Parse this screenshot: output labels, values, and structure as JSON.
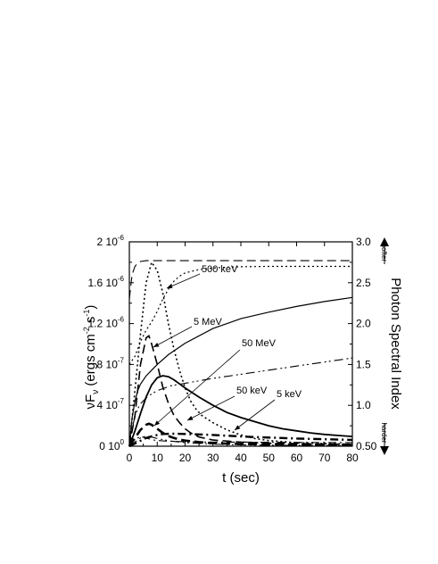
{
  "chart_data": {
    "type": "line",
    "xlabel": "t  (sec)",
    "ylabel_left": "νF_ν (ergs cm^-2 s^-1)",
    "ylabel_right": "Photon  Spectral  Index",
    "right_axis_direction_top": "softer",
    "right_axis_direction_bottom": "harder",
    "xlim": [
      0,
      80
    ],
    "ylim_left": [
      0,
      2e-06
    ],
    "ylim_right": [
      0.5,
      3.0
    ],
    "x_ticks": [
      0,
      10,
      20,
      30,
      40,
      50,
      60,
      70,
      80
    ],
    "x_tick_labels": [
      "0",
      "10",
      "20",
      "30",
      "40",
      "50",
      "60",
      "70",
      "80"
    ],
    "y_left_ticks": [
      {
        "base": "0",
        "exp": "0",
        "value": 0
      },
      {
        "base": "4",
        "exp": "-7",
        "value": 4e-07
      },
      {
        "base": "8",
        "exp": "-7",
        "value": 8e-07
      },
      {
        "base": "1.2",
        "exp": "-6",
        "value": 1.2e-06
      },
      {
        "base": "1.6",
        "exp": "-6",
        "value": 1.6e-06
      },
      {
        "base": "2",
        "exp": "-6",
        "value": 2e-06
      }
    ],
    "y_right_ticks": [
      {
        "label": "0.50",
        "value": 0.5
      },
      {
        "label": "1.0",
        "value": 1.0
      },
      {
        "label": "1.5",
        "value": 1.5
      },
      {
        "label": "2.0",
        "value": 2.0
      },
      {
        "label": "2.5",
        "value": 2.5
      },
      {
        "label": "3.0",
        "value": 3.0
      }
    ],
    "annotations": [
      {
        "text": "500 keV"
      },
      {
        "text": "5 MeV"
      },
      {
        "text": "50 MeV"
      },
      {
        "text": "50 keV"
      },
      {
        "text": "5 keV"
      }
    ],
    "series": [
      {
        "axis": "left",
        "style": "dotted",
        "width": 1.6,
        "x": [
          0,
          2,
          4,
          6,
          8,
          10,
          12,
          14,
          16,
          18,
          20,
          22,
          24,
          26,
          30,
          35,
          40,
          45,
          50,
          60,
          70,
          80
        ],
        "y": [
          0,
          5.5e-07,
          1.1e-06,
          1.6e-06,
          1.8e-06,
          1.72e-06,
          1.5e-06,
          1.2e-06,
          9.5e-07,
          7.4e-07,
          5.7e-07,
          4.4e-07,
          3.6e-07,
          3e-07,
          2.3e-07,
          1.6e-07,
          1.1e-07,
          7.5e-08,
          5.5e-08,
          3.5e-08,
          2.5e-08,
          2e-08
        ]
      },
      {
        "axis": "left",
        "style": "dashed",
        "width": 1.6,
        "x": [
          0,
          2,
          4,
          6,
          7,
          8,
          10,
          12,
          14,
          16,
          18,
          20,
          22,
          25,
          30,
          40,
          50,
          60,
          70,
          80
        ],
        "y": [
          0,
          3e-07,
          8e-07,
          1.06e-06,
          1.08e-06,
          1e-06,
          8e-07,
          5.8e-07,
          4.2e-07,
          3e-07,
          2.3e-07,
          1.7e-07,
          1.3e-07,
          9e-08,
          6e-08,
          4e-08,
          3e-08,
          2.5e-08,
          2e-08,
          1.8e-08
        ]
      },
      {
        "axis": "left",
        "style": "solid",
        "width": 1.8,
        "x": [
          0,
          2,
          4,
          6,
          8,
          10,
          12,
          14,
          16,
          18,
          20,
          25,
          30,
          35,
          40,
          45,
          50,
          55,
          60,
          65,
          70,
          75,
          80
        ],
        "y": [
          0,
          1.5e-07,
          3.2e-07,
          4.8e-07,
          6e-07,
          6.7e-07,
          6.9e-07,
          6.8e-07,
          6.5e-07,
          6.1e-07,
          5.7e-07,
          4.8e-07,
          4e-07,
          3.3e-07,
          2.8e-07,
          2.4e-07,
          2e-07,
          1.7e-07,
          1.5e-07,
          1.3e-07,
          1.15e-07,
          1.05e-07,
          9.5e-08
        ]
      },
      {
        "axis": "left",
        "style": "dashed",
        "width": 2.6,
        "x": [
          0,
          2,
          4,
          6,
          7,
          8,
          10,
          12,
          14,
          16,
          18,
          20,
          25,
          30,
          40,
          50,
          60,
          70,
          80
        ],
        "y": [
          0,
          8e-08,
          1.6e-07,
          2.1e-07,
          2.2e-07,
          2.1e-07,
          1.7e-07,
          1.3e-07,
          1e-07,
          8e-08,
          6.5e-08,
          5.5e-08,
          4e-08,
          3e-08,
          2.2e-08,
          1.8e-08,
          1.5e-08,
          1.3e-08,
          1.2e-08
        ]
      },
      {
        "axis": "left",
        "style": "dashdot",
        "width": 2.4,
        "x": [
          0,
          3,
          6,
          9,
          12,
          16,
          20,
          25,
          30,
          40,
          50,
          60,
          70,
          80
        ],
        "y": [
          0,
          4e-08,
          8e-08,
          1.05e-07,
          1.2e-07,
          1.22e-07,
          1.2e-07,
          1.15e-07,
          1.1e-07,
          9.5e-08,
          8.5e-08,
          7.5e-08,
          6.8e-08,
          6.2e-08
        ]
      },
      {
        "axis": "left",
        "style": "dashdotdot",
        "width": 1.1,
        "x": [
          0,
          2,
          4,
          6,
          8,
          10,
          15,
          20,
          30,
          40,
          50,
          60,
          70,
          80
        ],
        "y": [
          0,
          4e-08,
          8e-08,
          1e-07,
          9e-08,
          7.5e-08,
          5e-08,
          3.5e-08,
          2e-08,
          1.3e-08,
          1e-08,
          8e-09,
          7e-09,
          6e-09
        ]
      },
      {
        "axis": "right",
        "style": "dashed",
        "width": 1.1,
        "x": [
          0,
          1,
          2,
          3,
          4,
          6,
          8,
          10,
          20,
          40,
          60,
          80
        ],
        "y": [
          2.3,
          2.6,
          2.7,
          2.74,
          2.76,
          2.77,
          2.77,
          2.77,
          2.77,
          2.77,
          2.77,
          2.77
        ]
      },
      {
        "axis": "right",
        "style": "dotted",
        "width": 1.2,
        "x": [
          0,
          2,
          4,
          6,
          8,
          10,
          12,
          14,
          16,
          18,
          20,
          25,
          30,
          35,
          40,
          50,
          60,
          70,
          80
        ],
        "y": [
          1.5,
          1.6,
          1.78,
          1.92,
          2.02,
          2.15,
          2.3,
          2.42,
          2.52,
          2.58,
          2.62,
          2.66,
          2.68,
          2.69,
          2.695,
          2.7,
          2.7,
          2.7,
          2.7
        ]
      },
      {
        "axis": "right",
        "style": "solid",
        "width": 1.2,
        "x": [
          0,
          1,
          2,
          3,
          4,
          6,
          8,
          10,
          14,
          20,
          30,
          40,
          50,
          60,
          70,
          80
        ],
        "y": [
          0.5,
          0.85,
          1.05,
          1.18,
          1.26,
          1.36,
          1.43,
          1.5,
          1.62,
          1.76,
          1.94,
          2.06,
          2.14,
          2.21,
          2.27,
          2.32
        ]
      },
      {
        "axis": "right",
        "style": "dashdotdot",
        "width": 1.1,
        "x": [
          0,
          1,
          2,
          3,
          4,
          6,
          8,
          10,
          15,
          20,
          30,
          40,
          50,
          60,
          70,
          80
        ],
        "y": [
          0.5,
          0.72,
          0.86,
          0.96,
          1.02,
          1.09,
          1.14,
          1.18,
          1.24,
          1.27,
          1.33,
          1.38,
          1.43,
          1.48,
          1.53,
          1.58
        ]
      },
      {
        "axis": "right",
        "style": "dashdot",
        "width": 1.1,
        "x": [
          0,
          2,
          4,
          6,
          8,
          10,
          14,
          20,
          30,
          40,
          50,
          60,
          70,
          80
        ],
        "y": [
          0.5,
          0.58,
          0.62,
          0.6,
          0.58,
          0.57,
          0.56,
          0.555,
          0.55,
          0.55,
          0.548,
          0.546,
          0.545,
          0.545
        ]
      }
    ]
  }
}
